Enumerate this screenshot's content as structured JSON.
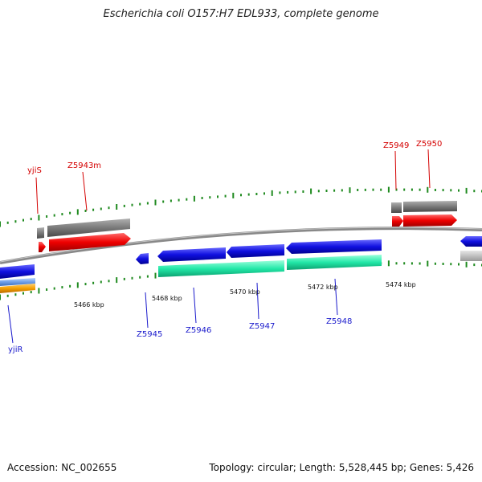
{
  "title": "Escherichia coli O157:H7 EDL933, complete genome",
  "footer": {
    "accession": "Accession: NC_002655",
    "summary": "Topology: circular; Length: 5,528,445 bp; Genes: 5,426"
  },
  "scale": {
    "ticks": [
      "5466 kbp",
      "5468 kbp",
      "5470 kbp",
      "5472 kbp",
      "5474 kbp"
    ]
  },
  "genes": {
    "forward": [
      "yjiS",
      "Z5943m",
      "Z5949",
      "Z5950"
    ],
    "reverse": [
      "yjiR",
      "Z5945",
      "Z5946",
      "Z5947",
      "Z5948"
    ]
  },
  "colors": {
    "forward_cds": "#ee0000",
    "reverse_cds": "#1010e0",
    "forward_gene_bar": "#777777",
    "reverse_gene_bar": "#bbbbbb",
    "teal_bar": "#22e8a8",
    "orange_bar": "#f5a000",
    "backbone": "#888888",
    "tick": "#1f8a1f"
  }
}
